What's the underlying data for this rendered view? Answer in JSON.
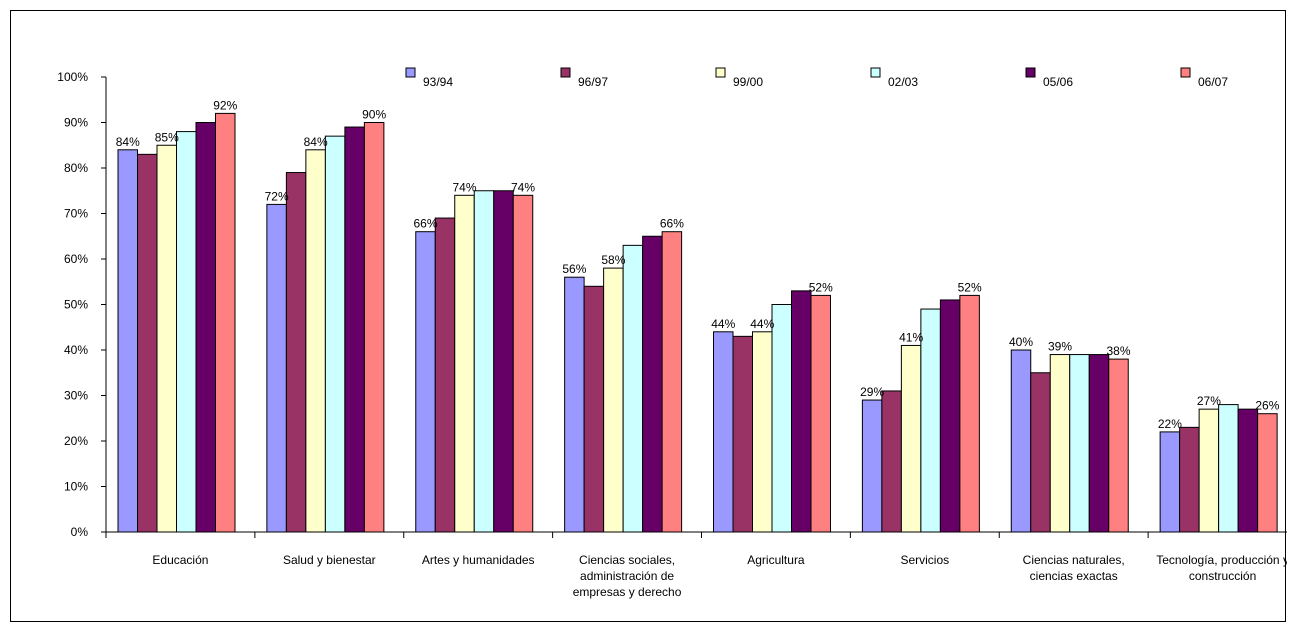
{
  "chart_data": {
    "type": "bar",
    "title": "",
    "xlabel": "",
    "ylabel": "",
    "ylim": [
      0,
      100
    ],
    "yticks": [
      0,
      10,
      20,
      30,
      40,
      50,
      60,
      70,
      80,
      90,
      100
    ],
    "ytick_suffix": "%",
    "grid": false,
    "legend_position": "top",
    "categories": [
      [
        "Educación"
      ],
      [
        "Salud y bienestar"
      ],
      [
        "Artes y humanidades"
      ],
      [
        "Ciencias sociales,",
        "administración de",
        "empresas y derecho"
      ],
      [
        "Agricultura"
      ],
      [
        "Servicios"
      ],
      [
        "Ciencias naturales,",
        "ciencias exactas"
      ],
      [
        "Tecnología, producción y",
        "construcción"
      ]
    ],
    "series": [
      {
        "name": "93/94",
        "color": "#9999FF",
        "values": [
          84,
          72,
          66,
          56,
          44,
          29,
          40,
          22
        ]
      },
      {
        "name": "96/97",
        "color": "#993366",
        "values": [
          83,
          79,
          69,
          54,
          43,
          31,
          35,
          23
        ]
      },
      {
        "name": "99/00",
        "color": "#FFFFCC",
        "values": [
          85,
          84,
          74,
          58,
          44,
          41,
          39,
          27
        ]
      },
      {
        "name": "02/03",
        "color": "#CCFFFF",
        "values": [
          88,
          87,
          75,
          63,
          50,
          49,
          39,
          28
        ]
      },
      {
        "name": "05/06",
        "color": "#660066",
        "values": [
          90,
          89,
          75,
          65,
          53,
          51,
          39,
          27
        ]
      },
      {
        "name": "06/07",
        "color": "#FF8080",
        "values": [
          92,
          90,
          74,
          66,
          52,
          52,
          38,
          26
        ]
      }
    ],
    "data_labels": [
      {
        "category": 0,
        "series": 0,
        "text": "84%"
      },
      {
        "category": 0,
        "series": 2,
        "text": "85%"
      },
      {
        "category": 0,
        "series": 5,
        "text": "92%"
      },
      {
        "category": 1,
        "series": 0,
        "text": "72%"
      },
      {
        "category": 1,
        "series": 2,
        "text": "84%"
      },
      {
        "category": 1,
        "series": 5,
        "text": "90%"
      },
      {
        "category": 2,
        "series": 0,
        "text": "66%"
      },
      {
        "category": 2,
        "series": 2,
        "text": "74%"
      },
      {
        "category": 2,
        "series": 5,
        "text": "74%"
      },
      {
        "category": 3,
        "series": 0,
        "text": "56%"
      },
      {
        "category": 3,
        "series": 2,
        "text": "58%"
      },
      {
        "category": 3,
        "series": 5,
        "text": "66%"
      },
      {
        "category": 4,
        "series": 0,
        "text": "44%"
      },
      {
        "category": 4,
        "series": 2,
        "text": "44%"
      },
      {
        "category": 4,
        "series": 5,
        "text": "52%"
      },
      {
        "category": 5,
        "series": 0,
        "text": "29%"
      },
      {
        "category": 5,
        "series": 2,
        "text": "41%"
      },
      {
        "category": 5,
        "series": 5,
        "text": "52%"
      },
      {
        "category": 6,
        "series": 0,
        "text": "40%"
      },
      {
        "category": 6,
        "series": 2,
        "text": "39%"
      },
      {
        "category": 6,
        "series": 5,
        "text": "38%"
      },
      {
        "category": 7,
        "series": 0,
        "text": "22%"
      },
      {
        "category": 7,
        "series": 2,
        "text": "27%"
      },
      {
        "category": 7,
        "series": 5,
        "text": "26%"
      }
    ]
  }
}
